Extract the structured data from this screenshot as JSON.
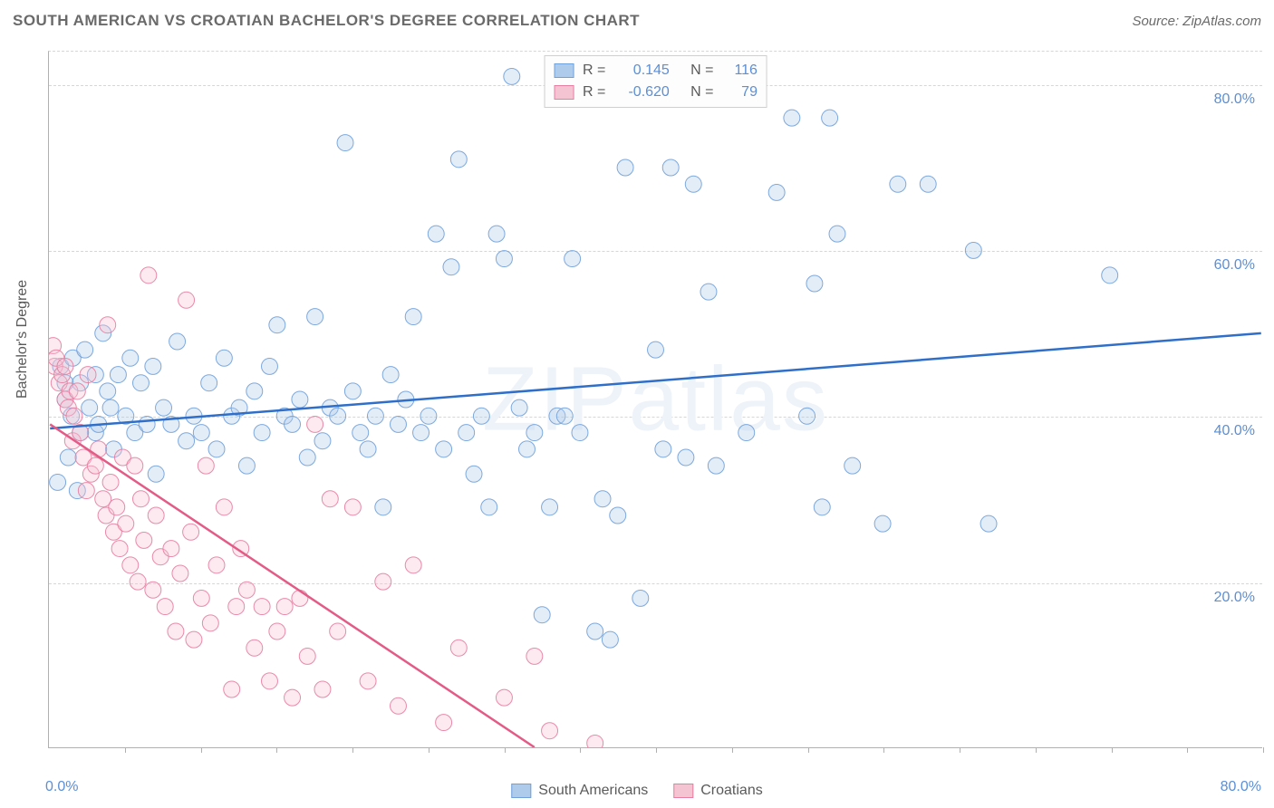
{
  "title": "SOUTH AMERICAN VS CROATIAN BACHELOR'S DEGREE CORRELATION CHART",
  "source_label": "Source: ZipAtlas.com",
  "watermark": "ZIPatlas",
  "yaxis": {
    "title": "Bachelor's Degree"
  },
  "xaxis": {
    "start_label": "0.0%",
    "end_label": "80.0%"
  },
  "chart": {
    "type": "scatter",
    "xlim": [
      0,
      80
    ],
    "ylim": [
      0,
      84
    ],
    "x_tick_positions": [
      5,
      10,
      15,
      20,
      25,
      30,
      35,
      40,
      45,
      50,
      55,
      60,
      65,
      70,
      75,
      80
    ],
    "y_gridlines": [
      20,
      40,
      60,
      80
    ],
    "y_tick_labels": [
      "20.0%",
      "40.0%",
      "60.0%",
      "80.0%"
    ],
    "background_color": "#ffffff",
    "grid_color": "#d6d6d6",
    "axis_color": "#b0b0b0",
    "marker_radius": 9,
    "series": [
      {
        "name": "South Americans",
        "fill": "#aecbec",
        "stroke": "#6fa0da",
        "line_color": "#2f6fc9",
        "R": "0.145",
        "N": "116",
        "trend": {
          "x1": 0,
          "y1": 38.5,
          "x2": 80,
          "y2": 50
        },
        "points": [
          [
            0.5,
            32
          ],
          [
            0.7,
            46
          ],
          [
            1,
            42
          ],
          [
            1,
            44
          ],
          [
            1.2,
            35
          ],
          [
            1.4,
            40
          ],
          [
            1.5,
            47
          ],
          [
            1.8,
            31
          ],
          [
            2,
            44
          ],
          [
            2,
            38
          ],
          [
            2.3,
            48
          ],
          [
            2.6,
            41
          ],
          [
            3,
            45
          ],
          [
            3,
            38
          ],
          [
            3.2,
            39
          ],
          [
            3.5,
            50
          ],
          [
            3.8,
            43
          ],
          [
            4,
            41
          ],
          [
            4.2,
            36
          ],
          [
            4.5,
            45
          ],
          [
            5,
            40
          ],
          [
            5.3,
            47
          ],
          [
            5.6,
            38
          ],
          [
            6,
            44
          ],
          [
            6.4,
            39
          ],
          [
            6.8,
            46
          ],
          [
            7,
            33
          ],
          [
            7.5,
            41
          ],
          [
            8,
            39
          ],
          [
            8.4,
            49
          ],
          [
            9,
            37
          ],
          [
            9.5,
            40
          ],
          [
            10,
            38
          ],
          [
            10.5,
            44
          ],
          [
            11,
            36
          ],
          [
            11.5,
            47
          ],
          [
            12,
            40
          ],
          [
            12.5,
            41
          ],
          [
            13,
            34
          ],
          [
            13.5,
            43
          ],
          [
            14,
            38
          ],
          [
            14.5,
            46
          ],
          [
            15,
            51
          ],
          [
            15.5,
            40
          ],
          [
            16,
            39
          ],
          [
            16.5,
            42
          ],
          [
            17,
            35
          ],
          [
            17.5,
            52
          ],
          [
            18,
            37
          ],
          [
            18.5,
            41
          ],
          [
            19,
            40
          ],
          [
            19.5,
            73
          ],
          [
            20,
            43
          ],
          [
            20.5,
            38
          ],
          [
            21,
            36
          ],
          [
            21.5,
            40
          ],
          [
            22,
            29
          ],
          [
            22.5,
            45
          ],
          [
            23,
            39
          ],
          [
            23.5,
            42
          ],
          [
            24,
            52
          ],
          [
            24.5,
            38
          ],
          [
            25,
            40
          ],
          [
            25.5,
            62
          ],
          [
            26,
            36
          ],
          [
            26.5,
            58
          ],
          [
            27,
            71
          ],
          [
            27.5,
            38
          ],
          [
            28,
            33
          ],
          [
            28.5,
            40
          ],
          [
            29,
            29
          ],
          [
            29.5,
            62
          ],
          [
            30,
            59
          ],
          [
            30.5,
            81
          ],
          [
            31,
            41
          ],
          [
            31.5,
            36
          ],
          [
            32,
            38
          ],
          [
            32.5,
            16
          ],
          [
            33,
            29
          ],
          [
            33.5,
            40
          ],
          [
            34,
            40
          ],
          [
            34.5,
            59
          ],
          [
            35,
            38
          ],
          [
            36,
            14
          ],
          [
            36.5,
            30
          ],
          [
            37,
            13
          ],
          [
            37.5,
            28
          ],
          [
            38,
            70
          ],
          [
            39,
            18
          ],
          [
            40,
            48
          ],
          [
            40.5,
            36
          ],
          [
            41,
            70
          ],
          [
            42,
            35
          ],
          [
            42.5,
            68
          ],
          [
            43.5,
            55
          ],
          [
            44,
            34
          ],
          [
            46,
            38
          ],
          [
            48,
            67
          ],
          [
            49,
            76
          ],
          [
            50,
            40
          ],
          [
            50.5,
            56
          ],
          [
            51,
            29
          ],
          [
            51.5,
            76
          ],
          [
            52,
            62
          ],
          [
            53,
            34
          ],
          [
            55,
            27
          ],
          [
            56,
            68
          ],
          [
            58,
            68
          ],
          [
            61,
            60
          ],
          [
            62,
            27
          ],
          [
            70,
            57
          ]
        ]
      },
      {
        "name": "Croatians",
        "fill": "#f5c4d3",
        "stroke": "#e77da0",
        "line_color": "#e35b87",
        "R": "-0.620",
        "N": "79",
        "trend": {
          "x1": 0,
          "y1": 39,
          "x2": 32,
          "y2": 0
        },
        "points": [
          [
            0.2,
            48.5
          ],
          [
            0.3,
            46
          ],
          [
            0.4,
            47
          ],
          [
            0.6,
            44
          ],
          [
            0.8,
            45
          ],
          [
            1,
            42
          ],
          [
            1,
            46
          ],
          [
            1.2,
            41
          ],
          [
            1.3,
            43
          ],
          [
            1.5,
            37
          ],
          [
            1.6,
            40
          ],
          [
            1.8,
            43
          ],
          [
            2,
            38
          ],
          [
            2.2,
            35
          ],
          [
            2.4,
            31
          ],
          [
            2.5,
            45
          ],
          [
            2.7,
            33
          ],
          [
            3,
            34
          ],
          [
            3.2,
            36
          ],
          [
            3.5,
            30
          ],
          [
            3.7,
            28
          ],
          [
            3.8,
            51
          ],
          [
            4,
            32
          ],
          [
            4.2,
            26
          ],
          [
            4.4,
            29
          ],
          [
            4.6,
            24
          ],
          [
            4.8,
            35
          ],
          [
            5,
            27
          ],
          [
            5.3,
            22
          ],
          [
            5.6,
            34
          ],
          [
            5.8,
            20
          ],
          [
            6,
            30
          ],
          [
            6.2,
            25
          ],
          [
            6.5,
            57
          ],
          [
            6.8,
            19
          ],
          [
            7,
            28
          ],
          [
            7.3,
            23
          ],
          [
            7.6,
            17
          ],
          [
            8,
            24
          ],
          [
            8.3,
            14
          ],
          [
            8.6,
            21
          ],
          [
            9,
            54
          ],
          [
            9.3,
            26
          ],
          [
            9.5,
            13
          ],
          [
            10,
            18
          ],
          [
            10.3,
            34
          ],
          [
            10.6,
            15
          ],
          [
            11,
            22
          ],
          [
            11.5,
            29
          ],
          [
            12,
            7
          ],
          [
            12.3,
            17
          ],
          [
            12.6,
            24
          ],
          [
            13,
            19
          ],
          [
            13.5,
            12
          ],
          [
            14,
            17
          ],
          [
            14.5,
            8
          ],
          [
            15,
            14
          ],
          [
            15.5,
            17
          ],
          [
            16,
            6
          ],
          [
            16.5,
            18
          ],
          [
            17,
            11
          ],
          [
            17.5,
            39
          ],
          [
            18,
            7
          ],
          [
            18.5,
            30
          ],
          [
            19,
            14
          ],
          [
            20,
            29
          ],
          [
            21,
            8
          ],
          [
            22,
            20
          ],
          [
            23,
            5
          ],
          [
            24,
            22
          ],
          [
            26,
            3
          ],
          [
            27,
            12
          ],
          [
            30,
            6
          ],
          [
            32,
            11
          ],
          [
            33,
            2
          ],
          [
            36,
            0.5
          ]
        ]
      }
    ]
  },
  "bottom_legend": [
    {
      "label": "South Americans",
      "fill": "#aecbec",
      "stroke": "#6fa0da"
    },
    {
      "label": "Croatians",
      "fill": "#f5c4d3",
      "stroke": "#e77da0"
    }
  ]
}
